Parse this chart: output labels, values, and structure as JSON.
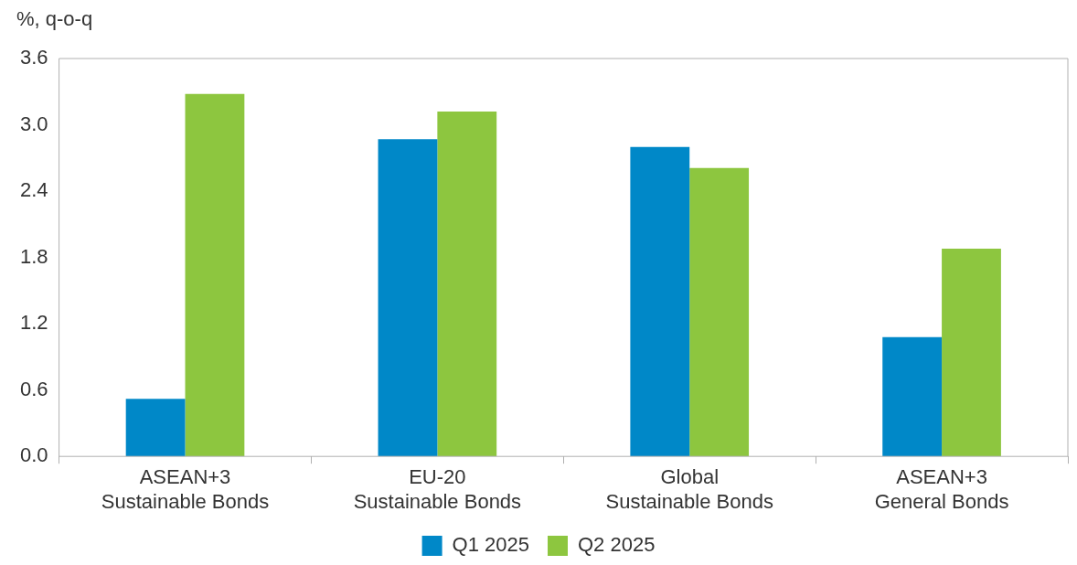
{
  "chart_data": {
    "type": "bar",
    "ylabel": "%, q-o-q",
    "categories": [
      "ASEAN+3\nSustainable Bonds",
      "EU-20\nSustainable Bonds",
      "Global\nSustainable Bonds",
      "ASEAN+3\nGeneral Bonds"
    ],
    "series": [
      {
        "name": "Q1 2025",
        "color": "#0088c8",
        "values": [
          0.52,
          2.87,
          2.8,
          1.08
        ]
      },
      {
        "name": "Q2 2025",
        "color": "#8dc63f",
        "values": [
          3.28,
          3.12,
          2.61,
          1.88
        ]
      }
    ],
    "ylim": [
      0,
      3.6
    ],
    "yticks": [
      {
        "value": 0,
        "label": "0.0"
      },
      {
        "value": 0.6,
        "label": "0.6"
      },
      {
        "value": 1.2,
        "label": "1.2"
      },
      {
        "value": 1.8,
        "label": "1.8"
      },
      {
        "value": 2.4,
        "label": "2.4"
      },
      {
        "value": 3,
        "label": "3.0"
      },
      {
        "value": 3.6,
        "label": "3.6"
      }
    ],
    "grid": false,
    "legend": "bottom"
  }
}
